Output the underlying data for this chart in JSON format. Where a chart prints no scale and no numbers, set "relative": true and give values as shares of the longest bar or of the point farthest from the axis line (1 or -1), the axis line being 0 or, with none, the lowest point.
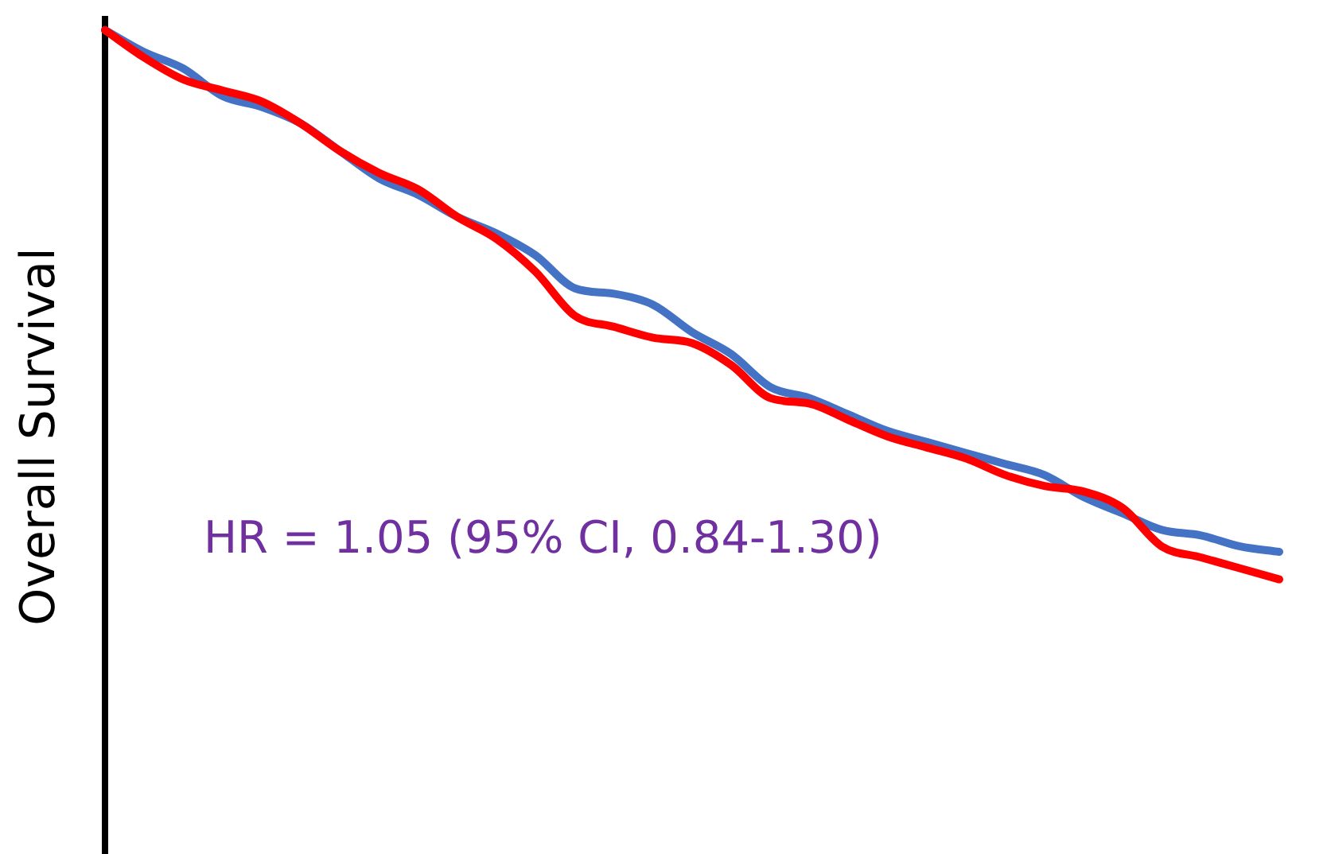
{
  "chart_data": {
    "type": "line",
    "relative": true,
    "ylabel": "Overall Survival",
    "annotations": [
      "HR = 1.05 (95% CI, 0.84-1.30)"
    ],
    "categories": [
      null,
      null,
      null,
      null,
      null,
      null,
      null,
      null,
      null,
      null,
      null,
      null,
      null,
      null,
      null,
      null,
      null,
      null,
      null,
      null,
      null,
      null,
      null,
      null,
      null,
      null,
      null,
      null,
      null,
      null,
      null
    ],
    "series": [
      {
        "color": "#4472c4",
        "values": [
          1.0,
          0.96,
          0.93,
          0.88,
          0.86,
          0.83,
          0.78,
          0.73,
          0.7,
          0.66,
          0.63,
          0.59,
          0.53,
          0.52,
          0.5,
          0.45,
          0.41,
          0.35,
          0.33,
          0.3,
          0.27,
          0.25,
          0.23,
          0.21,
          0.19,
          0.15,
          0.12,
          0.09,
          0.08,
          0.06,
          0.05
        ]
      },
      {
        "color": "#ff0000",
        "values": [
          1.0,
          0.95,
          0.91,
          0.89,
          0.87,
          0.83,
          0.78,
          0.74,
          0.71,
          0.66,
          0.62,
          0.56,
          0.48,
          0.46,
          0.44,
          0.43,
          0.39,
          0.33,
          0.32,
          0.29,
          0.26,
          0.24,
          0.22,
          0.19,
          0.17,
          0.16,
          0.13,
          0.06,
          0.04,
          0.02,
          0.0
        ]
      }
    ],
    "legend": false,
    "marker": "none",
    "line_style": "solid"
  }
}
